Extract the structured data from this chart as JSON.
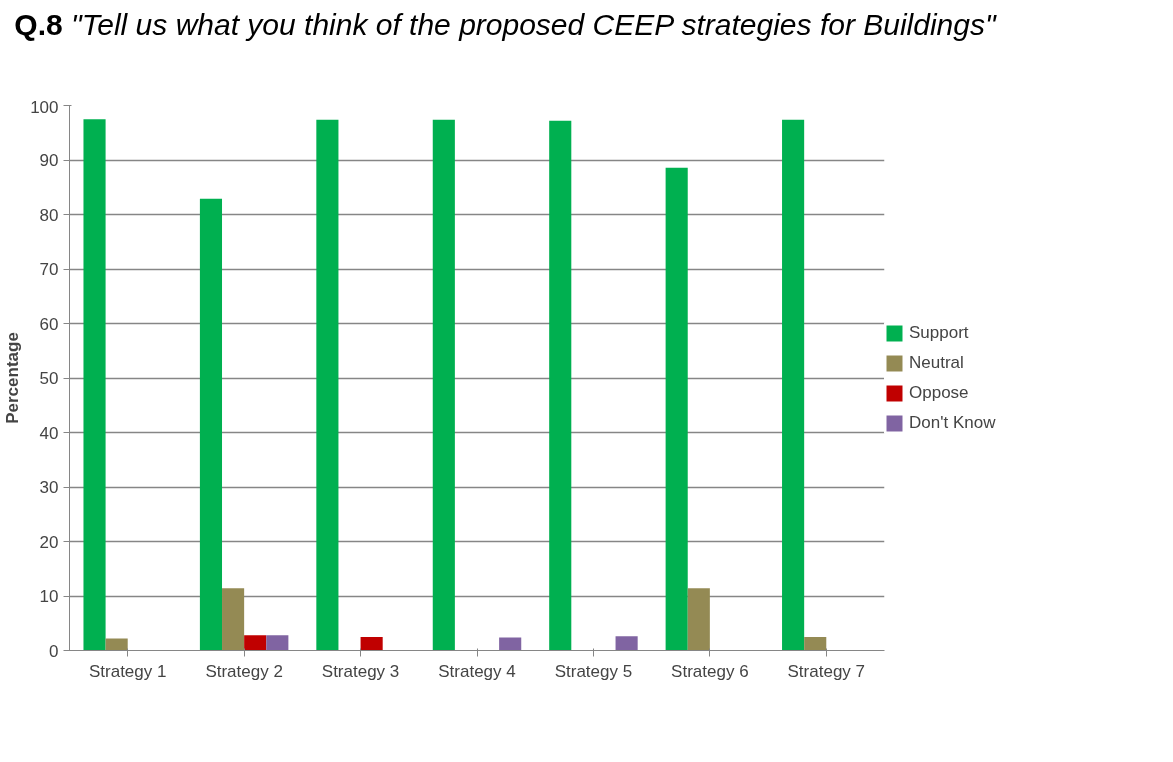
{
  "chart_data": {
    "type": "bar",
    "title": "Q.8 \"Tell us what you think of the proposed CEEP strategies for Buildings\"",
    "ylabel": "Percentage",
    "categories": [
      "Strategy 1",
      "Strategy 2",
      "Strategy 3",
      "Strategy 4",
      "Strategy 5",
      "Strategy 6",
      "Strategy 7"
    ],
    "series": [
      {
        "name": "Support",
        "color": "#00b050",
        "values": [
          97.5,
          82.9,
          97.4,
          97.4,
          97.2,
          88.6,
          97.4
        ]
      },
      {
        "name": "Neutral",
        "color": "#948a54",
        "values": [
          2.2,
          11.4,
          0,
          0,
          0,
          11.4,
          2.5
        ]
      },
      {
        "name": "Oppose",
        "color": "#c00000",
        "values": [
          0,
          2.8,
          2.5,
          0,
          0,
          0,
          0
        ]
      },
      {
        "name": "Don't Know",
        "color": "#8064a2",
        "values": [
          0,
          2.8,
          0,
          2.4,
          2.6,
          0,
          0
        ]
      }
    ],
    "ylim": [
      0,
      100
    ],
    "yticks": [
      0,
      10,
      20,
      30,
      40,
      50,
      60,
      70,
      80,
      90,
      100
    ],
    "grid": "y",
    "legend": "right"
  }
}
